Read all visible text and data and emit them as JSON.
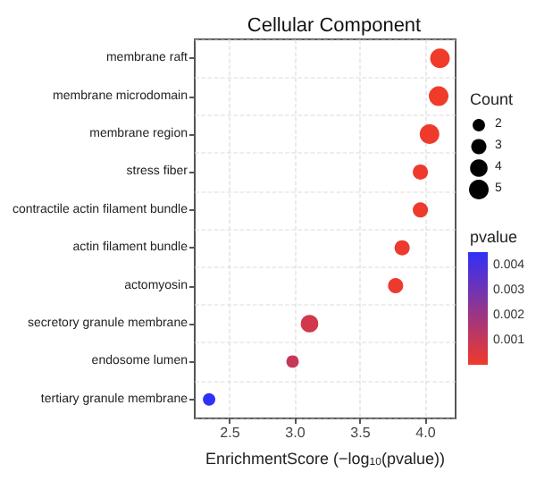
{
  "chart_data": {
    "type": "bubble",
    "title": "Cellular Component",
    "xlabel": "EnrichmentScore (−log$_{10}$(pvalue))",
    "categories": [
      "membrane raft",
      "membrane microdomain",
      "membrane region",
      "stress fiber",
      "contractile actin filament bundle",
      "actin filament bundle",
      "actomyosin",
      "secretory granule membrane",
      "endosome lumen",
      "tertiary granule membrane"
    ],
    "orientation": "horizontal",
    "series": [
      {
        "values": [
          4.11,
          4.1,
          4.03,
          3.96,
          3.96,
          3.82,
          3.77,
          3.11,
          2.98,
          2.34
        ],
        "sizes": [
          5,
          5,
          5,
          3,
          3,
          3,
          3,
          4,
          2,
          2
        ],
        "cvalues": [
          8e-05,
          8e-05,
          9e-05,
          0.00011,
          0.00011,
          0.00015,
          0.00017,
          0.00078,
          0.00105,
          0.0046
        ]
      }
    ],
    "size_legend": [
      2,
      3,
      4,
      5
    ],
    "legend_title": "Count",
    "clabel": "pvalue",
    "clim": [
      7e-05,
      0.00457
    ],
    "cticks": [
      {
        "value": 0.001,
        "label": "0.001"
      },
      {
        "value": 0.002,
        "label": "0.002"
      },
      {
        "value": 0.003,
        "label": "0.003"
      },
      {
        "value": 0.004,
        "label": "0.004"
      }
    ],
    "colors": [
      "#f03a2a",
      "#3030f8"
    ],
    "xlim": [
      2.23,
      4.23
    ],
    "xticks": [
      2.5,
      {
        "value": 3,
        "label": "3.0"
      },
      3.5,
      {
        "value": 4,
        "label": "4.0"
      }
    ],
    "grid": true
  }
}
